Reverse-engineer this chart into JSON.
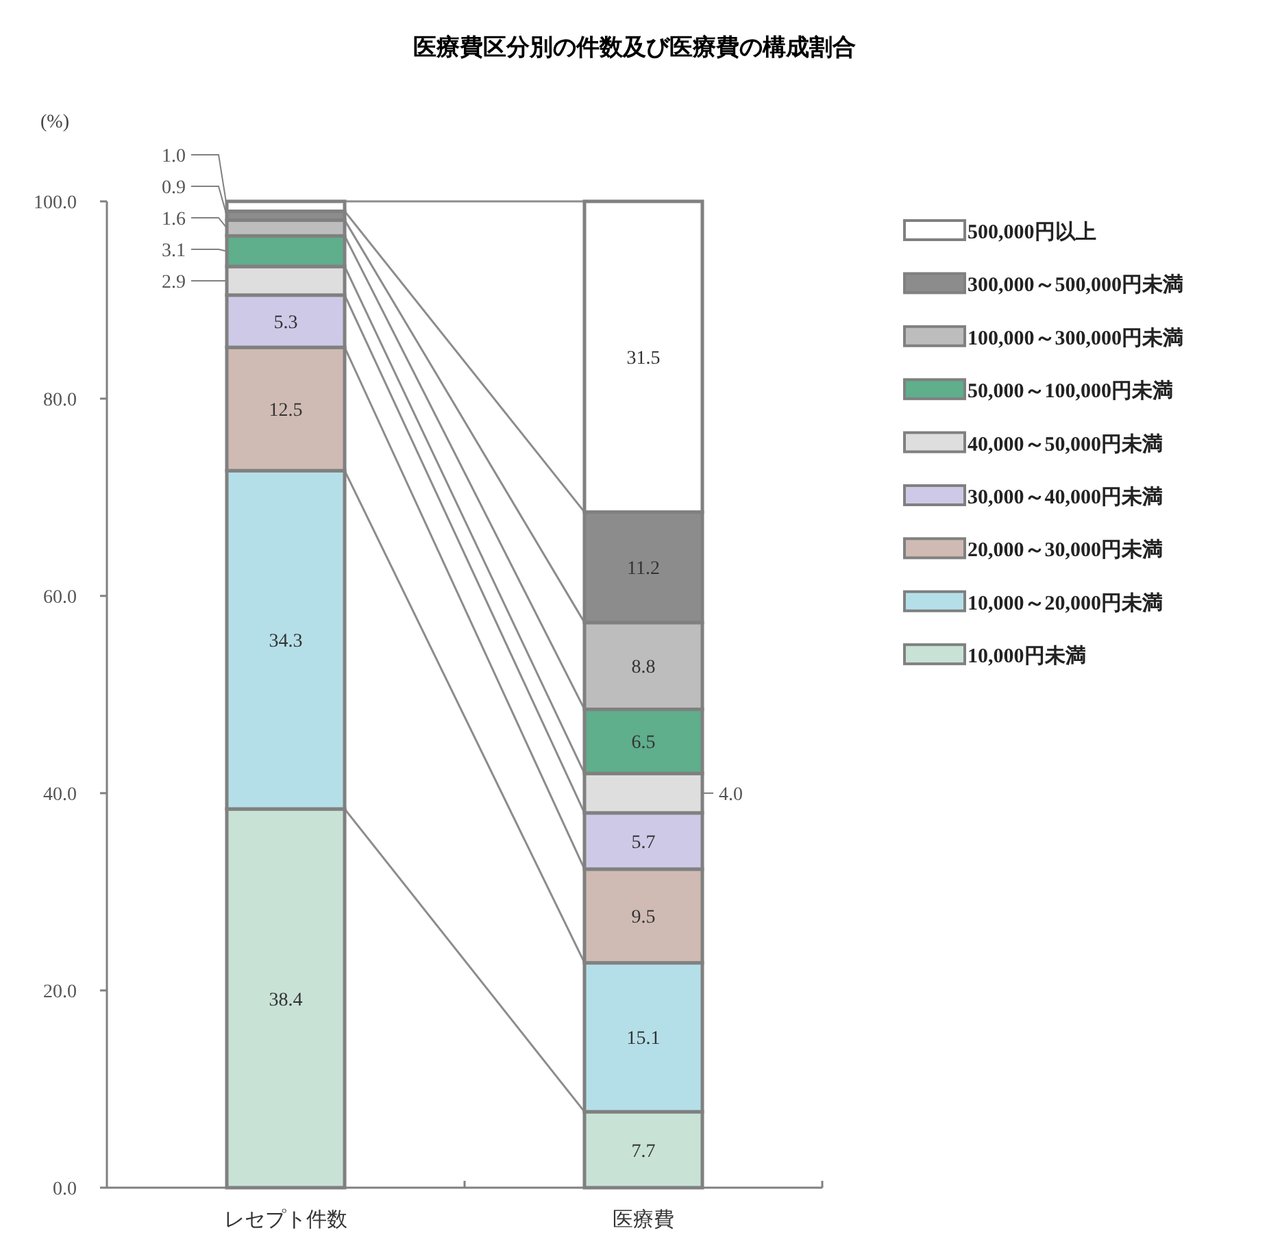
{
  "chart_data": {
    "type": "bar",
    "stacked": true,
    "title": "医療費区分別の件数及び医療費の構成割合",
    "ylabel": "(%)",
    "categories": [
      "レセプト件数",
      "医療費"
    ],
    "series": [
      {
        "name": "10,000円未満",
        "color": "#c8e2d6",
        "values": [
          38.4,
          7.7
        ],
        "value_labels": [
          "38.4",
          "7.7"
        ]
      },
      {
        "name": "10,000～20,000円未満",
        "color": "#b5dfe8",
        "values": [
          34.3,
          15.1
        ],
        "value_labels": [
          "34.3",
          "15.1"
        ]
      },
      {
        "name": "20,000～30,000円未満",
        "color": "#cfbbb3",
        "values": [
          12.5,
          9.5
        ],
        "value_labels": [
          "12.5",
          "9.5"
        ]
      },
      {
        "name": "30,000～40,000円未満",
        "color": "#cfc9e8",
        "values": [
          5.3,
          5.7
        ],
        "value_labels": [
          "5.3",
          "5.7"
        ]
      },
      {
        "name": "40,000～50,000円未満",
        "color": "#dedede",
        "values": [
          2.9,
          4.0
        ],
        "value_labels": [
          "2.9",
          "4.0"
        ]
      },
      {
        "name": "50,000～100,000円未満",
        "color": "#5fae8c",
        "values": [
          3.1,
          6.5
        ],
        "value_labels": [
          "3.1",
          "6.5"
        ]
      },
      {
        "name": "100,000～300,000円未満",
        "color": "#bdbdbd",
        "values": [
          1.6,
          8.8
        ],
        "value_labels": [
          "1.6",
          "8.8"
        ]
      },
      {
        "name": "300,000～500,000円未満",
        "color": "#8c8c8c",
        "values": [
          0.9,
          11.2
        ],
        "value_labels": [
          "0.9",
          "11.2"
        ]
      },
      {
        "name": "500,000円以上",
        "color": "#ffffff",
        "values": [
          1.0,
          31.5
        ],
        "value_labels": [
          "1.0",
          "31.5"
        ]
      }
    ],
    "ylim": [
      0,
      100
    ],
    "yticks": [
      {
        "value": 0,
        "label": "0.0"
      },
      {
        "value": 20,
        "label": "20.0"
      },
      {
        "value": 40,
        "label": "40.0"
      },
      {
        "value": 60,
        "label": "60.0"
      },
      {
        "value": 80,
        "label": "80.0"
      },
      {
        "value": 100,
        "label": "100.0"
      }
    ],
    "legend": "right",
    "grid": false
  }
}
